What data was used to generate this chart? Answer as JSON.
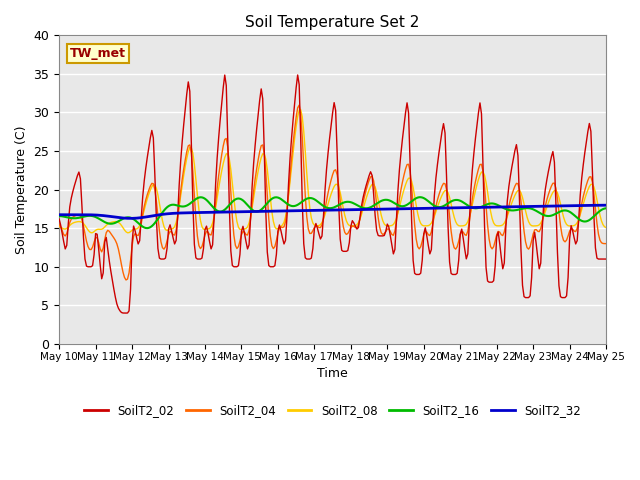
{
  "title": "Soil Temperature Set 2",
  "xlabel": "Time",
  "ylabel": "Soil Temperature (C)",
  "ylim": [
    0,
    40
  ],
  "yticks": [
    0,
    5,
    10,
    15,
    20,
    25,
    30,
    35,
    40
  ],
  "annotation": "TW_met",
  "colors": {
    "SoilT2_02": "#cc0000",
    "SoilT2_04": "#ff6600",
    "SoilT2_08": "#ffcc00",
    "SoilT2_16": "#00bb00",
    "SoilT2_32": "#0000cc"
  },
  "bg_color": "#e8e8e8",
  "fig_color": "#ffffff",
  "grid_color": "#ffffff",
  "n_days": 15,
  "start_day": 10,
  "legend_labels": [
    "SoilT2_02",
    "SoilT2_04",
    "SoilT2_08",
    "SoilT2_16",
    "SoilT2_32"
  ]
}
